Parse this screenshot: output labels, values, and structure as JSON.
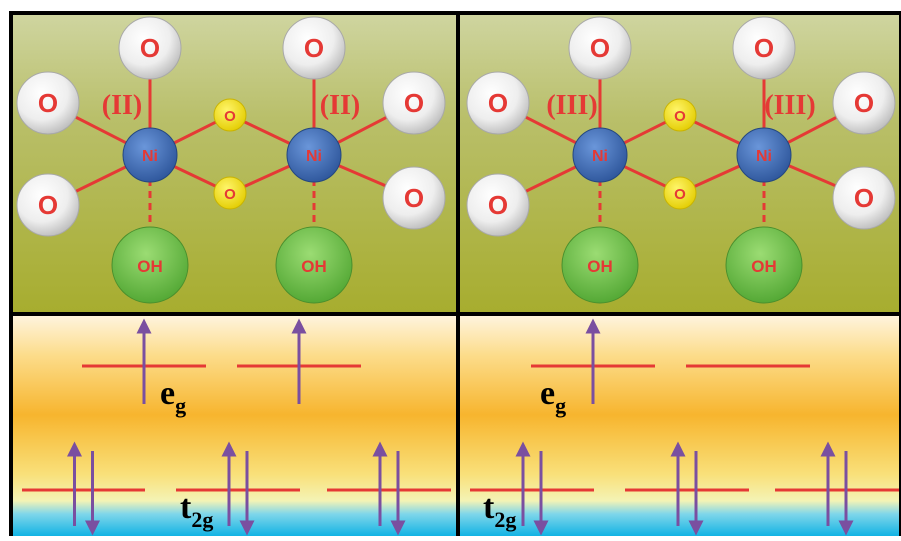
{
  "labels": {
    "oxygen": "O",
    "nickel": "Ni",
    "hydroxide": "OH",
    "eg_main": "e",
    "eg_sub": "g",
    "t2g_main": "t",
    "t2g_sub": "2g"
  },
  "panels": [
    {
      "oxidation_state": "(II)",
      "eg_electrons": [
        "up",
        "up"
      ],
      "t2g_electrons": [
        "pair",
        "pair",
        "pair"
      ]
    },
    {
      "oxidation_state": "(III)",
      "eg_electrons": [
        "up",
        "none"
      ],
      "t2g_electrons": [
        "pair",
        "pair",
        "pair"
      ]
    }
  ],
  "colors": {
    "bond": "#e53935",
    "label_red": "#e53935",
    "nickel": "#3f6fb8",
    "bridge_oxygen": "#f3e11a",
    "hydroxide": "#6cc04a",
    "arrow": "#7a4fa0",
    "level": "#e53935"
  }
}
